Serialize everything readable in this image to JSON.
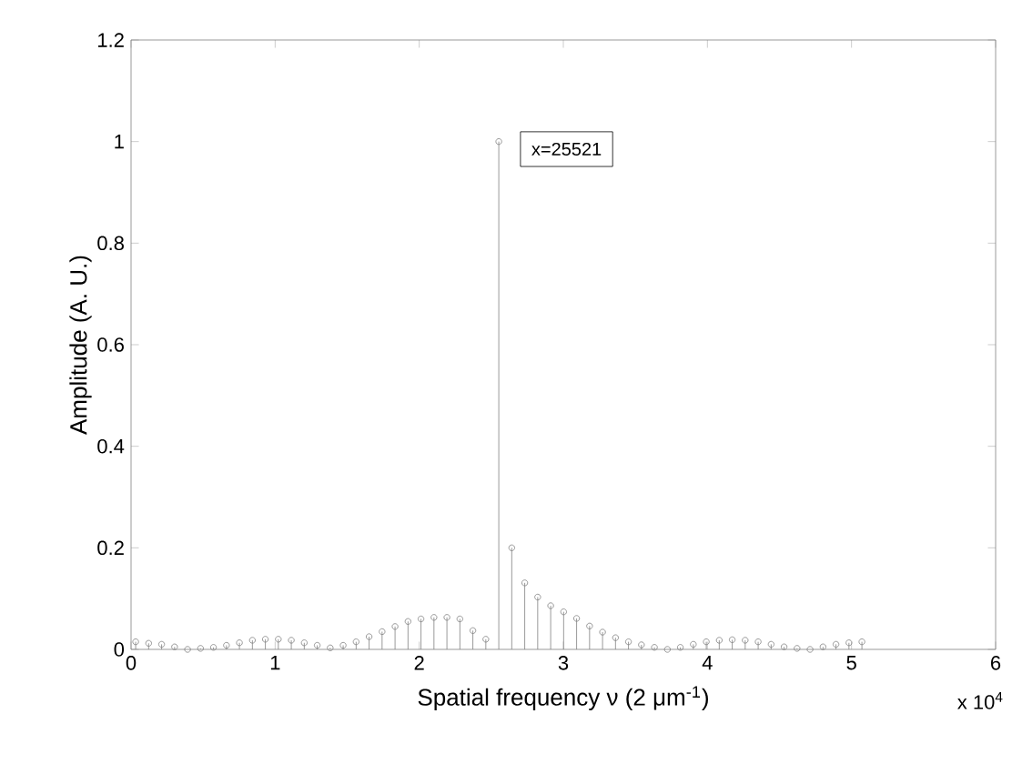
{
  "chart_data": {
    "type": "lollipop",
    "xlabel": "Spatial frequency ν (2 μm$^{-1}$)",
    "ylabel": "Amplitude (A. U.)",
    "x": [
      0.0321,
      0.1221,
      0.2121,
      0.3021,
      0.3921,
      0.4821,
      0.5721,
      0.6621,
      0.7521,
      0.8421,
      0.9321,
      1.0221,
      1.1121,
      1.2021,
      1.2921,
      1.3821,
      1.4721,
      1.5621,
      1.6521,
      1.7421,
      1.8321,
      1.9221,
      2.0121,
      2.1021,
      2.1921,
      2.2821,
      2.3721,
      2.4621,
      2.5521,
      2.6421,
      2.7321,
      2.8221,
      2.9121,
      3.0021,
      3.0921,
      3.1821,
      3.2721,
      3.3621,
      3.4521,
      3.5421,
      3.6321,
      3.7221,
      3.8121,
      3.9021,
      3.9921,
      4.0821,
      4.1721,
      4.2621,
      4.3521,
      4.4421,
      4.5321,
      4.6221,
      4.7121,
      4.8021,
      4.8921,
      4.9821,
      5.0721
    ],
    "values": [
      0.015,
      0.012,
      0.01,
      0.005,
      0,
      0.002,
      0.004,
      0.008,
      0.013,
      0.018,
      0.02,
      0.02,
      0.018,
      0.013,
      0.008,
      0.003,
      0.008,
      0.015,
      0.025,
      0.035,
      0.045,
      0.055,
      0.06,
      0.063,
      0.063,
      0.06,
      0.037,
      0.02,
      1,
      0.2,
      0.131,
      0.103,
      0.086,
      0.074,
      0.061,
      0.046,
      0.034,
      0.023,
      0.015,
      0.009,
      0.004,
      0,
      0.004,
      0.01,
      0.015,
      0.018,
      0.019,
      0.018,
      0.015,
      0.01,
      0.005,
      0.002,
      0,
      0.005,
      0.01,
      0.013,
      0.015
    ],
    "color": "#808080",
    "marker": "circle",
    "xlim": [
      0,
      6
    ],
    "xticks": [
      0,
      1,
      2,
      3,
      4,
      5,
      6
    ],
    "ylim": [
      0,
      1.2
    ],
    "yticks": [
      0,
      0.2,
      0.4,
      0.6,
      0.8,
      1,
      1.2
    ],
    "grid": false,
    "annotations": [
      "x=25521",
      "x 10$^{4}$"
    ]
  }
}
